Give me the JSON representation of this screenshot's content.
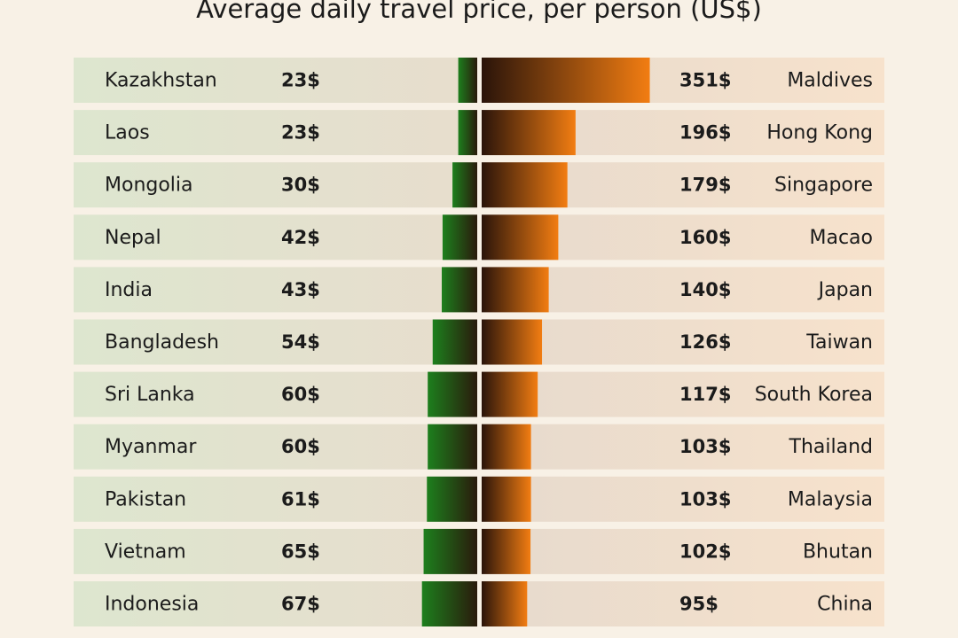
{
  "chart_data": [
    {
      "type": "bar",
      "orientation": "horizontal",
      "side": "left",
      "title": "Average daily travel price, per person (US$)",
      "categories": [
        "Kazakhstan",
        "Laos",
        "Mongolia",
        "Nepal",
        "India",
        "Bangladesh",
        "Sri Lanka",
        "Myanmar",
        "Pakistan",
        "Vietnam",
        "Indonesia"
      ],
      "values": [
        23,
        23,
        30,
        42,
        43,
        54,
        60,
        60,
        61,
        65,
        67
      ],
      "value_labels": [
        "23$",
        "23$",
        "30$",
        "42$",
        "43$",
        "54$",
        "60$",
        "60$",
        "61$",
        "65$",
        "67$"
      ],
      "color": "#1d7f1d"
    },
    {
      "type": "bar",
      "orientation": "horizontal",
      "side": "right",
      "categories": [
        "Maldives",
        "Hong Kong",
        "Singapore",
        "Macao",
        "Japan",
        "Taiwan",
        "South Korea",
        "Thailand",
        "Malaysia",
        "Bhutan",
        "China"
      ],
      "values": [
        351,
        196,
        179,
        160,
        140,
        126,
        117,
        103,
        103,
        102,
        95
      ],
      "value_labels": [
        "351$",
        "196$",
        "179$",
        "160$",
        "140$",
        "126$",
        "117$",
        "103$",
        "103$",
        "102$",
        "95$"
      ],
      "color": "#f27d12"
    }
  ]
}
